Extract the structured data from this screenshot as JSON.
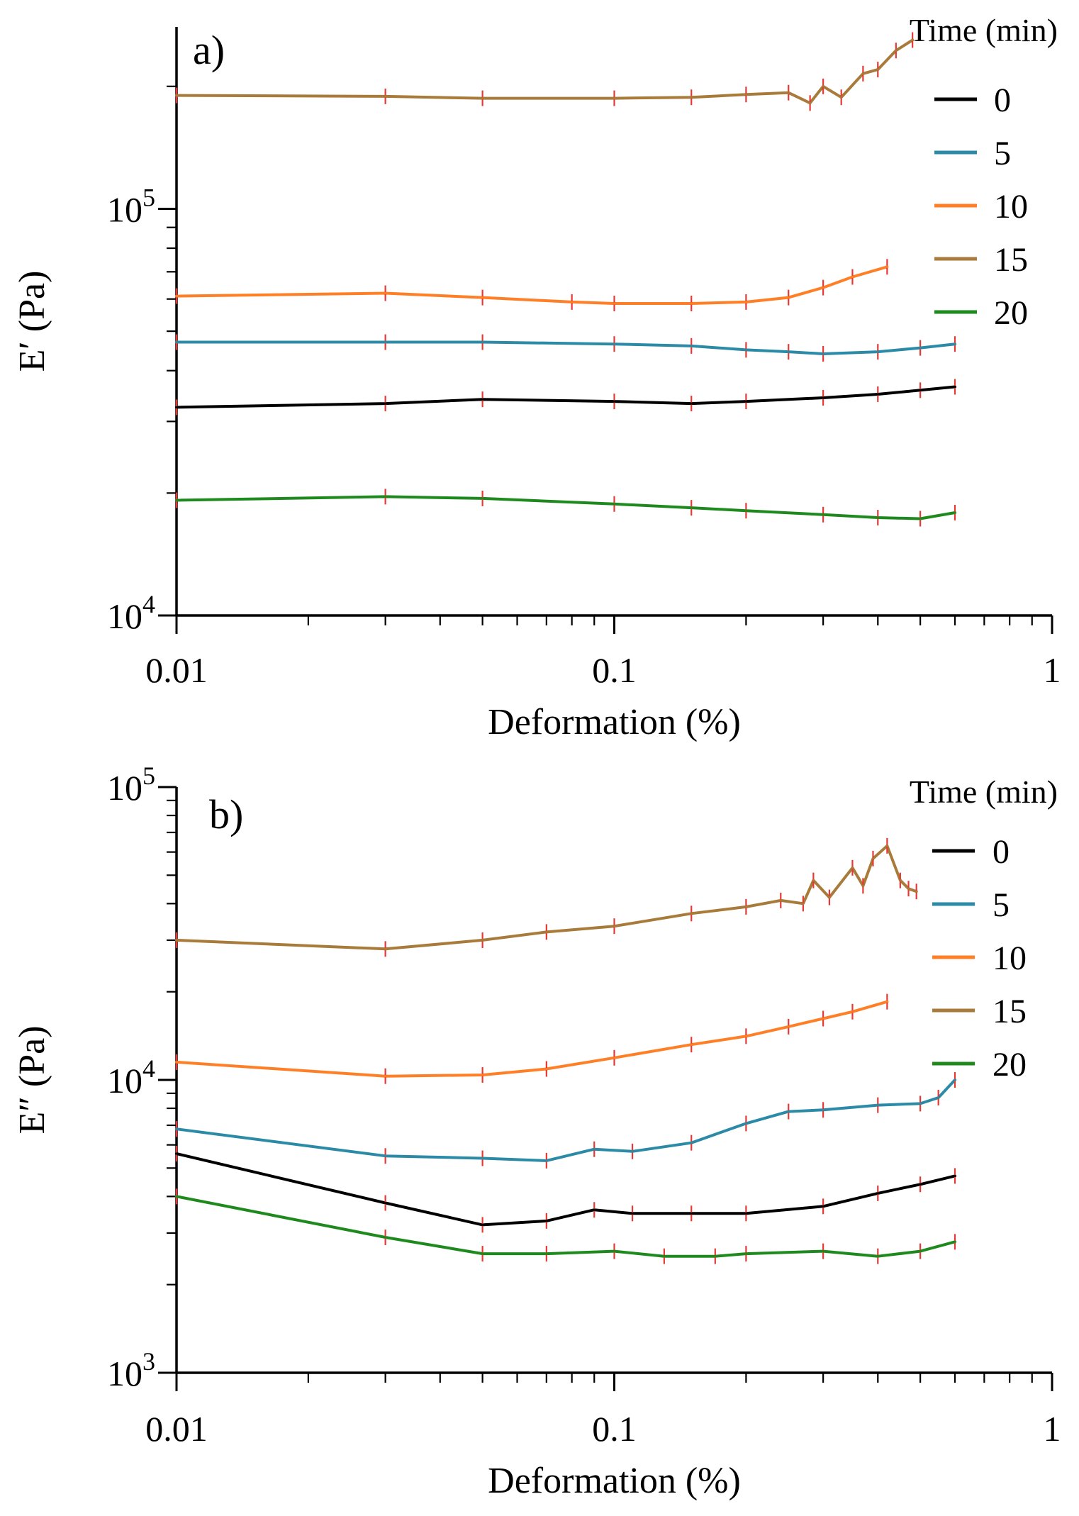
{
  "chart_data": [
    {
      "type": "line",
      "panel_label": "a)",
      "xlabel": "Deformation (%)",
      "ylabel": "E′ (Pa)",
      "xscale": "log",
      "yscale": "log",
      "xlim": [
        0.01,
        1
      ],
      "ylim": [
        10000,
        280000
      ],
      "x_ticks": [
        {
          "value": 0.01,
          "label": "0.01"
        },
        {
          "value": 0.1,
          "label": "0.1"
        },
        {
          "value": 1,
          "label": "1"
        }
      ],
      "y_ticks": [
        {
          "value": 10000,
          "base": "10",
          "exp": "4"
        },
        {
          "value": 100000,
          "base": "10",
          "exp": "5"
        }
      ],
      "legend": {
        "title": "Time (min)",
        "position": "top-right"
      },
      "error_bar_color": "#e53935",
      "series": [
        {
          "name": "0",
          "color": "#000000",
          "x": [
            0.01,
            0.03,
            0.05,
            0.1,
            0.15,
            0.2,
            0.3,
            0.4,
            0.5,
            0.6
          ],
          "y": [
            32500,
            33200,
            34000,
            33600,
            33200,
            33600,
            34300,
            35000,
            35800,
            36500
          ]
        },
        {
          "name": "5",
          "color": "#2b8aa6",
          "x": [
            0.01,
            0.03,
            0.05,
            0.1,
            0.15,
            0.2,
            0.25,
            0.3,
            0.4,
            0.5,
            0.6
          ],
          "y": [
            47000,
            47000,
            47000,
            46500,
            46000,
            45000,
            44500,
            44000,
            44500,
            45500,
            46500
          ]
        },
        {
          "name": "10",
          "color": "#ff7f27",
          "x": [
            0.01,
            0.03,
            0.05,
            0.08,
            0.1,
            0.15,
            0.2,
            0.25,
            0.3,
            0.35,
            0.42
          ],
          "y": [
            61000,
            62000,
            60500,
            59000,
            58500,
            58500,
            59000,
            60500,
            64000,
            68000,
            72000
          ]
        },
        {
          "name": "15",
          "color": "#a87b3a",
          "x": [
            0.01,
            0.03,
            0.05,
            0.1,
            0.15,
            0.2,
            0.25,
            0.28,
            0.3,
            0.33,
            0.37,
            0.4,
            0.44,
            0.48
          ],
          "y": [
            190000,
            189000,
            187000,
            187000,
            188000,
            191000,
            193000,
            182000,
            200000,
            188000,
            215000,
            220000,
            245000,
            260000
          ]
        },
        {
          "name": "20",
          "color": "#1e8a1e",
          "x": [
            0.01,
            0.03,
            0.05,
            0.1,
            0.15,
            0.2,
            0.3,
            0.4,
            0.5,
            0.6
          ],
          "y": [
            19200,
            19600,
            19400,
            18800,
            18400,
            18100,
            17700,
            17400,
            17300,
            17900
          ]
        }
      ]
    },
    {
      "type": "line",
      "panel_label": "b)",
      "xlabel": "Deformation (%)",
      "ylabel": "E″ (Pa)",
      "xscale": "log",
      "yscale": "log",
      "xlim": [
        0.01,
        1
      ],
      "ylim": [
        1000,
        100000
      ],
      "x_ticks": [
        {
          "value": 0.01,
          "label": "0.01"
        },
        {
          "value": 0.1,
          "label": "0.1"
        },
        {
          "value": 1,
          "label": "1"
        }
      ],
      "y_ticks": [
        {
          "value": 1000,
          "base": "10",
          "exp": "3"
        },
        {
          "value": 10000,
          "base": "10",
          "exp": "4"
        },
        {
          "value": 100000,
          "base": "10",
          "exp": "5"
        }
      ],
      "legend": {
        "title": "Time (min)",
        "position": "top-right"
      },
      "error_bar_color": "#e53935",
      "series": [
        {
          "name": "0",
          "color": "#000000",
          "x": [
            0.01,
            0.03,
            0.05,
            0.07,
            0.09,
            0.11,
            0.15,
            0.2,
            0.3,
            0.4,
            0.5,
            0.6
          ],
          "y": [
            5600,
            3800,
            3200,
            3300,
            3600,
            3500,
            3500,
            3500,
            3700,
            4100,
            4400,
            4700
          ]
        },
        {
          "name": "5",
          "color": "#2b8aa6",
          "x": [
            0.01,
            0.03,
            0.05,
            0.07,
            0.09,
            0.11,
            0.15,
            0.2,
            0.25,
            0.3,
            0.4,
            0.5,
            0.55,
            0.6
          ],
          "y": [
            6800,
            5500,
            5400,
            5300,
            5800,
            5700,
            6100,
            7100,
            7800,
            7900,
            8200,
            8300,
            8700,
            10000
          ]
        },
        {
          "name": "10",
          "color": "#ff7f27",
          "x": [
            0.01,
            0.03,
            0.05,
            0.07,
            0.1,
            0.15,
            0.2,
            0.25,
            0.3,
            0.35,
            0.42
          ],
          "y": [
            11500,
            10300,
            10400,
            10900,
            11900,
            13200,
            14100,
            15200,
            16200,
            17100,
            18500
          ]
        },
        {
          "name": "15",
          "color": "#a87b3a",
          "x": [
            0.01,
            0.03,
            0.05,
            0.07,
            0.1,
            0.15,
            0.2,
            0.24,
            0.27,
            0.285,
            0.31,
            0.35,
            0.37,
            0.39,
            0.42,
            0.45,
            0.47,
            0.49
          ],
          "y": [
            30000,
            28000,
            30000,
            32000,
            33500,
            37000,
            39000,
            41000,
            40000,
            48000,
            42000,
            53000,
            46000,
            57000,
            63000,
            48000,
            45000,
            44000
          ]
        },
        {
          "name": "20",
          "color": "#1e8a1e",
          "x": [
            0.01,
            0.03,
            0.05,
            0.07,
            0.1,
            0.13,
            0.17,
            0.2,
            0.3,
            0.4,
            0.5,
            0.6
          ],
          "y": [
            4000,
            2900,
            2550,
            2550,
            2600,
            2500,
            2500,
            2550,
            2600,
            2500,
            2600,
            2800
          ]
        }
      ]
    }
  ]
}
